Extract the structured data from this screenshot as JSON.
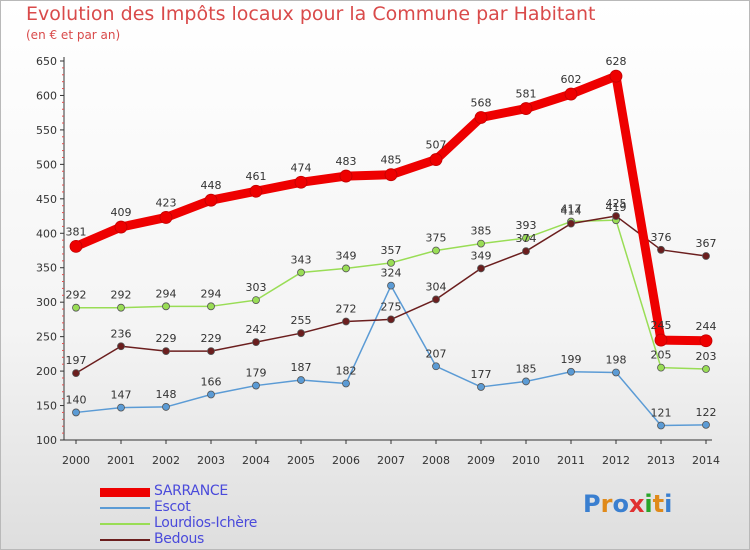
{
  "chart_data": {
    "type": "line",
    "title": "Evolution des Impôts locaux pour la Commune par Habitant",
    "subtitle": "(en € et par an)",
    "x": [
      "2000",
      "2001",
      "2002",
      "2003",
      "2004",
      "2005",
      "2006",
      "2007",
      "2008",
      "2009",
      "2010",
      "2011",
      "2012",
      "2013",
      "2014"
    ],
    "ylim": [
      100,
      650
    ],
    "yticks": [
      100,
      150,
      200,
      250,
      300,
      350,
      400,
      450,
      500,
      550,
      600,
      650
    ],
    "grid": false,
    "legend_position": "bottom-left",
    "series": [
      {
        "name": "SARRANCE",
        "color": "#ee0000",
        "width": 9,
        "values": [
          381,
          409,
          423,
          448,
          461,
          474,
          483,
          485,
          507,
          568,
          581,
          602,
          628,
          245,
          244
        ]
      },
      {
        "name": "Escot",
        "color": "#5b9bd5",
        "width": 1.5,
        "values": [
          140,
          147,
          148,
          166,
          179,
          187,
          182,
          324,
          207,
          177,
          185,
          199,
          198,
          121,
          122
        ]
      },
      {
        "name": "Lourdios-Ichère",
        "color": "#99dd55",
        "width": 1.5,
        "values": [
          292,
          292,
          294,
          294,
          303,
          343,
          349,
          357,
          375,
          385,
          393,
          417,
          419,
          205,
          203
        ]
      },
      {
        "name": "Bedous",
        "color": "#6b1e1e",
        "width": 1.5,
        "values": [
          197,
          236,
          229,
          229,
          242,
          255,
          272,
          275,
          304,
          349,
          374,
          414,
          425,
          376,
          367
        ]
      }
    ]
  },
  "logo": {
    "text": "Proxiti",
    "letters": [
      "P",
      "r",
      "o",
      "x",
      "i",
      "t",
      "i"
    ],
    "colors": [
      "#3a7fd0",
      "#e08a1a",
      "#3a7fd0",
      "#e03030",
      "#2aa52a",
      "#e08a1a",
      "#3a7fd0"
    ]
  }
}
